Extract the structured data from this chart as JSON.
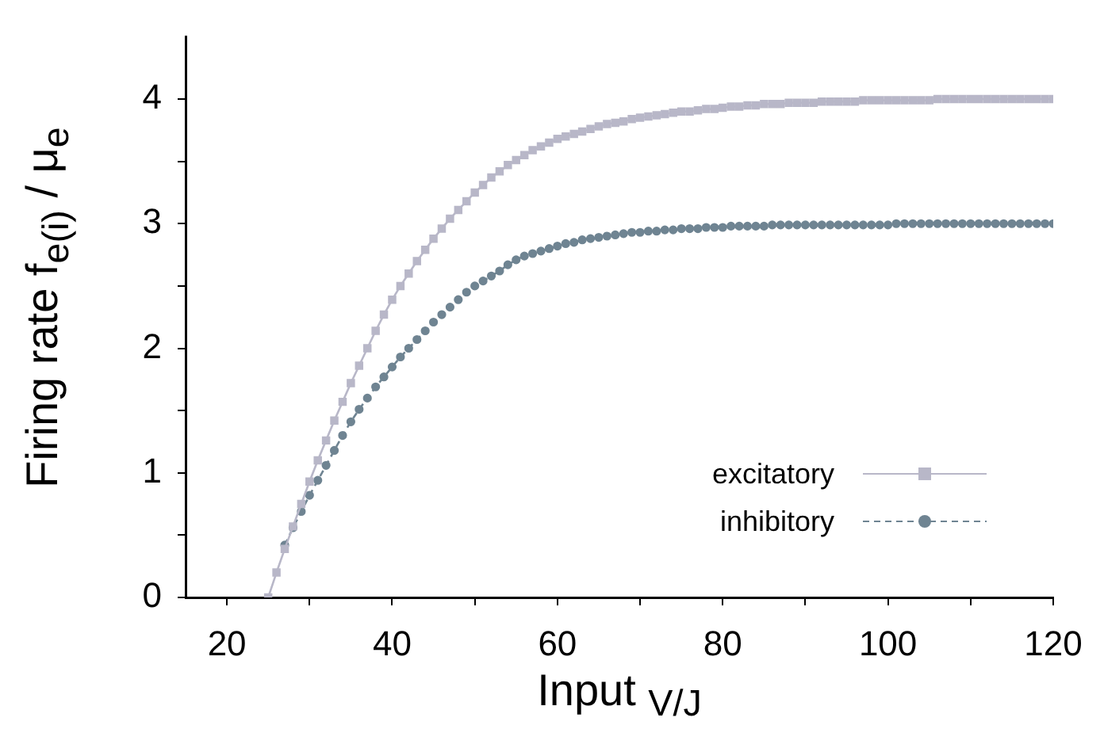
{
  "chart_data": {
    "type": "line",
    "xlabel": "Input $_{V/J}$",
    "ylabel": "Firing rate f$_{e(i)}$ / μ$_{e}$",
    "xlim": [
      15,
      120
    ],
    "ylim": [
      0,
      4.5
    ],
    "xticks": [
      20,
      {
        "value": 30,
        "label": null
      },
      40,
      {
        "value": 50,
        "label": null
      },
      60,
      {
        "value": 70,
        "label": null
      },
      80,
      {
        "value": 90,
        "label": null
      },
      100,
      {
        "value": 110,
        "label": null
      },
      120
    ],
    "yticks": [
      0,
      {
        "value": 0.5,
        "label": null
      },
      1,
      {
        "value": 1.5,
        "label": null
      },
      2,
      {
        "value": 2.5,
        "label": null
      },
      3,
      {
        "value": 3.5,
        "label": null
      },
      4
    ],
    "grid": false,
    "legend": "bottom right",
    "series": [
      {
        "name": "excitatory",
        "color": "#b8b7c8",
        "marker": "square",
        "line_style": "solid",
        "x": [
          25,
          26,
          27,
          28,
          29,
          30,
          31,
          32,
          33,
          34,
          35,
          36,
          37,
          38,
          39,
          40,
          41,
          42,
          43,
          44,
          45,
          46,
          47,
          48,
          49,
          50,
          51,
          52,
          53,
          54,
          55,
          56,
          57,
          58,
          59,
          60,
          61,
          62,
          63,
          64,
          65,
          66,
          67,
          68,
          69,
          70,
          71,
          72,
          73,
          74,
          75,
          76,
          77,
          78,
          79,
          80,
          81,
          82,
          83,
          84,
          85,
          86,
          87,
          88,
          89,
          90,
          91,
          92,
          93,
          94,
          95,
          96,
          97,
          98,
          99,
          100,
          101,
          102,
          103,
          104,
          105,
          106,
          107,
          108,
          109,
          110,
          111,
          112,
          113,
          114,
          115,
          116,
          117,
          118,
          119,
          120
        ],
        "values": [
          0,
          0.2,
          0.39,
          0.57,
          0.75,
          0.93,
          1.1,
          1.26,
          1.42,
          1.57,
          1.72,
          1.86,
          2.0,
          2.14,
          2.27,
          2.39,
          2.5,
          2.6,
          2.7,
          2.79,
          2.88,
          2.96,
          3.04,
          3.11,
          3.18,
          3.25,
          3.31,
          3.37,
          3.42,
          3.47,
          3.51,
          3.55,
          3.59,
          3.62,
          3.65,
          3.68,
          3.7,
          3.72,
          3.74,
          3.76,
          3.78,
          3.8,
          3.81,
          3.82,
          3.84,
          3.85,
          3.86,
          3.87,
          3.88,
          3.89,
          3.9,
          3.9,
          3.91,
          3.92,
          3.92,
          3.93,
          3.94,
          3.94,
          3.95,
          3.95,
          3.96,
          3.96,
          3.96,
          3.97,
          3.97,
          3.97,
          3.97,
          3.98,
          3.98,
          3.98,
          3.98,
          3.98,
          3.99,
          3.99,
          3.99,
          3.99,
          3.99,
          3.99,
          3.99,
          3.99,
          3.99,
          4.0,
          4.0,
          4.0,
          4.0,
          4.0,
          4.0,
          4.0,
          4.0,
          4.0,
          4.0,
          4.0,
          4.0,
          4.0,
          4.0,
          4.0
        ]
      },
      {
        "name": "inhibitory",
        "color": "#6f8492",
        "marker": "circle",
        "line_style": "dashed",
        "x": [
          27,
          28,
          29,
          30,
          31,
          32,
          33,
          34,
          35,
          36,
          37,
          38,
          39,
          40,
          41,
          42,
          43,
          44,
          45,
          46,
          47,
          48,
          49,
          50,
          51,
          52,
          53,
          54,
          55,
          56,
          57,
          58,
          59,
          60,
          61,
          62,
          63,
          64,
          65,
          66,
          67,
          68,
          69,
          70,
          71,
          72,
          73,
          74,
          75,
          76,
          77,
          78,
          79,
          80,
          81,
          82,
          83,
          84,
          85,
          86,
          87,
          88,
          89,
          90,
          91,
          92,
          93,
          94,
          95,
          96,
          97,
          98,
          99,
          100,
          101,
          102,
          103,
          104,
          105,
          106,
          107,
          108,
          109,
          110,
          111,
          112,
          113,
          114,
          115,
          116,
          117,
          118,
          119,
          120
        ],
        "values": [
          0.42,
          0.56,
          0.69,
          0.82,
          0.94,
          1.06,
          1.18,
          1.3,
          1.41,
          1.51,
          1.6,
          1.69,
          1.77,
          1.85,
          1.93,
          2.0,
          2.07,
          2.14,
          2.21,
          2.27,
          2.33,
          2.39,
          2.45,
          2.5,
          2.54,
          2.58,
          2.62,
          2.67,
          2.71,
          2.74,
          2.76,
          2.78,
          2.8,
          2.82,
          2.84,
          2.85,
          2.87,
          2.88,
          2.89,
          2.9,
          2.91,
          2.92,
          2.93,
          2.93,
          2.94,
          2.94,
          2.95,
          2.95,
          2.96,
          2.96,
          2.96,
          2.97,
          2.97,
          2.97,
          2.98,
          2.98,
          2.98,
          2.98,
          2.98,
          2.99,
          2.99,
          2.99,
          2.99,
          2.99,
          2.99,
          2.99,
          2.99,
          2.99,
          2.99,
          2.99,
          2.99,
          2.99,
          2.99,
          2.99,
          3.0,
          3.0,
          3.0,
          3.0,
          3.0,
          3.0,
          3.0,
          3.0,
          3.0,
          3.0,
          3.0,
          3.0,
          3.0,
          3.0,
          3.0,
          3.0,
          3.0,
          3.0,
          3.0,
          3.0
        ]
      }
    ]
  }
}
